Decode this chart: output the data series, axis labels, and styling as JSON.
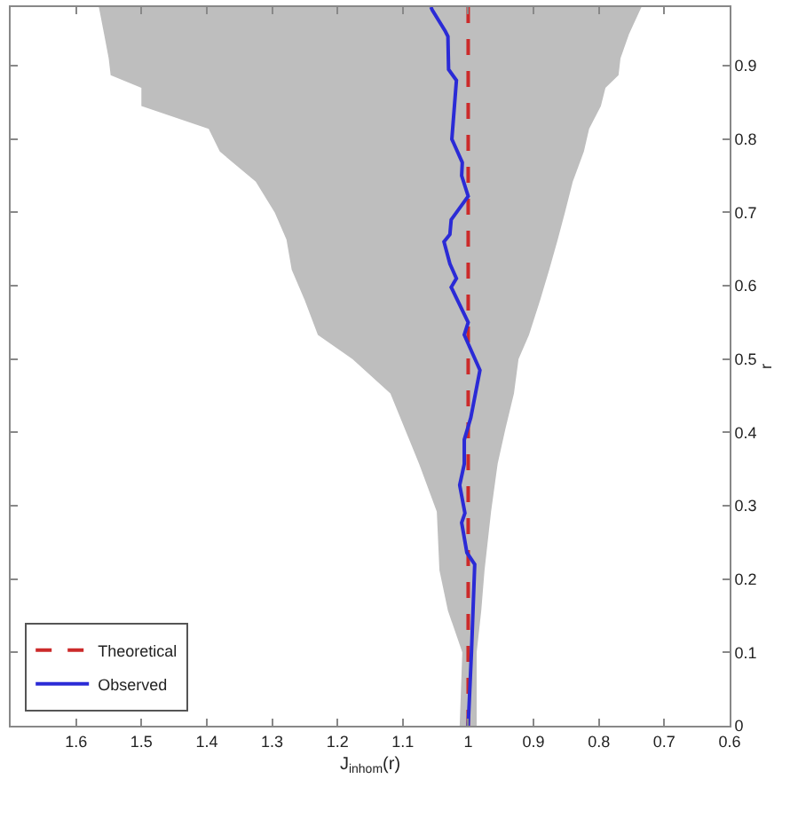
{
  "chart_data": {
    "type": "line",
    "orientation": "horizontal",
    "xlabel": "J$_{inhom}$(r)",
    "ylabel": "r",
    "xlim": [
      1.7,
      0.6
    ],
    "ylim": [
      0,
      0.98
    ],
    "xticks": [
      1.6,
      1.5,
      1.4,
      1.3,
      1.2,
      1.1,
      1,
      0.9,
      0.8,
      0.7,
      0.6
    ],
    "yticks": [
      0,
      0.1,
      0.2,
      0.3,
      0.4,
      0.5,
      0.6,
      0.7,
      0.8,
      0.9
    ],
    "legend": "bottom left",
    "series": [
      {
        "name": "Theoretical",
        "color": "#cc2a2a",
        "line_style": "dashed",
        "x": [
          0,
          0.1,
          0.157,
          0.212,
          0.292,
          0.357,
          0.405,
          0.453,
          0.5,
          0.533,
          0.58,
          0.622,
          0.663,
          0.7,
          0.742,
          0.783,
          0.814,
          0.845,
          0.87,
          0.887,
          0.91,
          0.943,
          0.98
        ],
        "values": [
          1,
          1,
          1,
          1,
          1,
          1,
          1,
          1,
          1,
          1,
          1,
          1,
          1,
          1,
          1,
          1,
          1,
          1,
          1,
          1,
          1,
          1,
          1
        ],
        "upper": [
          1.013,
          1.009,
          1.031,
          1.044,
          1.048,
          1.075,
          1.097,
          1.119,
          1.177,
          1.23,
          1.25,
          1.27,
          1.278,
          1.296,
          1.325,
          1.38,
          1.397,
          1.5,
          1.5,
          1.547,
          1.55,
          1.557,
          1.565
        ],
        "lower": [
          0.987,
          0.987,
          0.98,
          0.975,
          0.965,
          0.955,
          0.943,
          0.93,
          0.923,
          0.907,
          0.89,
          0.876,
          0.863,
          0.852,
          0.84,
          0.823,
          0.815,
          0.797,
          0.79,
          0.77,
          0.767,
          0.754,
          0.735
        ]
      },
      {
        "name": "Observed",
        "color": "#2b2bd6",
        "line_style": "solid",
        "x": [
          0,
          0.1,
          0.22,
          0.236,
          0.277,
          0.29,
          0.328,
          0.357,
          0.39,
          0.42,
          0.485,
          0.533,
          0.55,
          0.598,
          0.61,
          0.63,
          0.66,
          0.67,
          0.69,
          0.722,
          0.75,
          0.768,
          0.8,
          0.88,
          0.895,
          0.94,
          0.947,
          0.976,
          0.98
        ],
        "values": [
          1,
          0.995,
          0.99,
          1.002,
          1.01,
          1.005,
          1.013,
          1.006,
          1.006,
          0.996,
          0.982,
          1.006,
          1,
          1.026,
          1.018,
          1.028,
          1.037,
          1.028,
          1.026,
          1,
          1.01,
          1.009,
          1.025,
          1.018,
          1.03,
          1.031,
          1.035,
          1.055,
          1.057
        ]
      }
    ]
  }
}
